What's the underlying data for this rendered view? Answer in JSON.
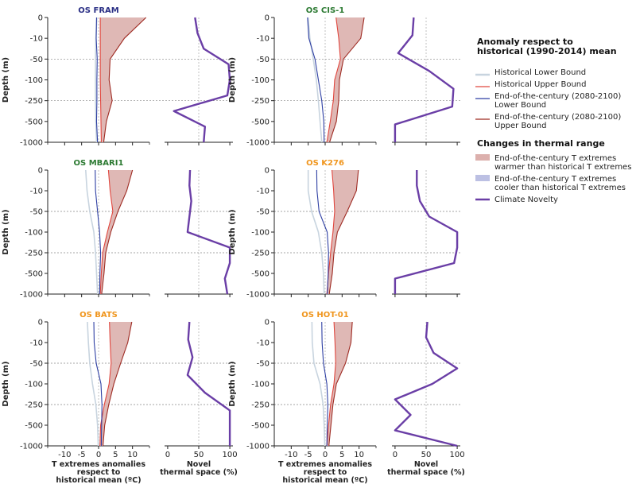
{
  "chart_data": {
    "type": "line",
    "depth_ticks": [
      0,
      -10,
      -50,
      -100,
      -250,
      -500,
      -1000
    ],
    "depth_tick_labels": [
      "0",
      "-10",
      "-50",
      "-100",
      "-250",
      "-500",
      "-1000"
    ],
    "depth_refs": [
      -50,
      -200,
      -1000
    ],
    "y_label": "Depth (m)",
    "anom_ticks": [
      -10,
      -5,
      0,
      5,
      10
    ],
    "anom_tick_labels": [
      "-10",
      "-5",
      "0",
      "5",
      "10"
    ],
    "anom_xlabel": [
      "T extremes anomalies",
      "respect to",
      "historical mean (ºC)"
    ],
    "novel_ticks": [
      0,
      50,
      100
    ],
    "novel_tick_labels": [
      "0",
      "50",
      "100"
    ],
    "novel_xlabel": [
      "Novel",
      "thermal space (%)"
    ],
    "colors": {
      "hist_lower": "#c8d4df",
      "hist_upper": "#e0473f",
      "eoc_lower": "#2e3fa3",
      "eoc_upper": "#9e2a22",
      "warm_fill": "#dcb0ad",
      "cool_fill": "#bcc0e3",
      "novelty": "#6a3ea6",
      "title_blue": "#2a2f85",
      "title_green": "#2c7a32",
      "title_orange": "#f0961e"
    },
    "legend": {
      "title1": [
        "Anomaly respect to",
        "historical (1990-2014) mean"
      ],
      "items1": [
        {
          "key": "hist_lower",
          "lines": [
            "Historical Lower Bound"
          ]
        },
        {
          "key": "hist_upper",
          "lines": [
            "Historical Upper Bound"
          ]
        },
        {
          "key": "eoc_lower",
          "lines": [
            "End-of-the-century (2080-2100)",
            "Lower Bound"
          ]
        },
        {
          "key": "eoc_upper",
          "lines": [
            "End-of-the-century (2080-2100)",
            "Upper Bound"
          ]
        }
      ],
      "title2": "Changes in thermal range",
      "items2": [
        {
          "key": "warm_fill",
          "lines": [
            "End-of-the-century T extremes",
            "warmer than historical T extremes"
          ]
        },
        {
          "key": "cool_fill",
          "lines": [
            "End-of-the-century T extremes",
            "cooler than historical T extremes"
          ]
        },
        {
          "key": "novelty",
          "lines": [
            "Climate Novelty"
          ]
        }
      ]
    },
    "stations": [
      {
        "name": "OS FRAM",
        "title_color": "title_blue",
        "depth": [
          0,
          -10,
          -50,
          -100,
          -250,
          -500,
          -1000
        ],
        "hist_lower": [
          -0.5,
          -0.8,
          -0.9,
          -0.9,
          -0.9,
          -0.8,
          -0.6
        ],
        "hist_upper": [
          0.5,
          0.5,
          0.5,
          0.5,
          0.6,
          0.7,
          0.8
        ],
        "eoc_lower": [
          -0.6,
          -0.7,
          -0.4,
          -0.5,
          -0.5,
          -0.6,
          -0.3
        ],
        "eoc_upper": [
          14.0,
          7.6,
          3.4,
          3.1,
          4.0,
          2.3,
          1.5
        ],
        "novelty": [
          44,
          48,
          58,
          98,
          100,
          96,
          10,
          60,
          58
        ]
      },
      {
        "name": "OS CIS-1",
        "title_color": "title_green",
        "depth": [
          0,
          -10,
          -50,
          -100,
          -250,
          -500,
          -1000
        ],
        "hist_lower": [
          -5.0,
          -4.5,
          -3.5,
          -2.6,
          -2.0,
          -1.5,
          -1.0
        ],
        "hist_upper": [
          3.2,
          4.0,
          4.5,
          2.8,
          2.4,
          1.5,
          0.5
        ],
        "eoc_lower": [
          -5.2,
          -4.8,
          -3.0,
          -2.0,
          -1.0,
          -0.4,
          -0.3
        ],
        "eoc_upper": [
          11.5,
          10.5,
          5.4,
          4.2,
          4.0,
          3.3,
          1.3
        ],
        "novelty": [
          30,
          28,
          5,
          55,
          94,
          92,
          0,
          0
        ]
      },
      {
        "name": "OS MBARI1",
        "title_color": "title_green",
        "depth": [
          0,
          -10,
          -50,
          -100,
          -250,
          -500,
          -1000
        ],
        "hist_lower": [
          -3.8,
          -3.4,
          -2.6,
          -1.4,
          -0.9,
          -0.6,
          -0.3
        ],
        "hist_upper": [
          2.9,
          3.4,
          4.2,
          2.6,
          1.2,
          0.8,
          0.5
        ],
        "eoc_lower": [
          -1.0,
          -0.9,
          -0.3,
          0.3,
          0.6,
          0.4,
          0.3
        ],
        "eoc_upper": [
          10.0,
          8.3,
          5.7,
          3.6,
          2.1,
          1.6,
          0.9
        ],
        "novelty": [
          36,
          35,
          38,
          35,
          32,
          100,
          100,
          92,
          96
        ]
      },
      {
        "name": "OS K276",
        "title_color": "title_orange",
        "depth": [
          0,
          -10,
          -50,
          -100,
          -250,
          -500,
          -1000
        ],
        "hist_lower": [
          -5.0,
          -5.0,
          -4.0,
          -2.0,
          -1.0,
          -0.5,
          -0.3
        ],
        "hist_upper": [
          2.0,
          2.5,
          2.8,
          2.3,
          1.6,
          1.0,
          0.5
        ],
        "eoc_lower": [
          -2.5,
          -2.4,
          -1.8,
          0.6,
          1.0,
          0.9,
          0.6
        ],
        "eoc_upper": [
          9.8,
          9.2,
          6.5,
          3.6,
          2.6,
          2.1,
          1.2
        ],
        "novelty": [
          35,
          35,
          40,
          55,
          100,
          100,
          95,
          0,
          0
        ]
      },
      {
        "name": "OS BATS",
        "title_color": "title_orange",
        "depth": [
          0,
          -10,
          -50,
          -100,
          -250,
          -500,
          -1000
        ],
        "hist_lower": [
          -3.3,
          -3.0,
          -2.6,
          -1.8,
          -0.8,
          -0.3,
          -0.1
        ],
        "hist_upper": [
          3.2,
          3.4,
          3.7,
          3.1,
          1.7,
          0.6,
          0.4
        ],
        "eoc_lower": [
          -1.4,
          -1.3,
          -0.7,
          0.7,
          1.0,
          0.9,
          0.8
        ],
        "eoc_upper": [
          9.8,
          8.6,
          6.5,
          4.5,
          3.0,
          1.8,
          1.3
        ],
        "novelty": [
          35,
          33,
          40,
          32,
          60,
          100,
          100,
          100
        ]
      },
      {
        "name": "OS HOT-01",
        "title_color": "title_orange",
        "depth": [
          0,
          -10,
          -50,
          -100,
          -250,
          -500,
          -1000
        ],
        "hist_lower": [
          -3.9,
          -3.8,
          -3.3,
          -1.5,
          -0.6,
          -0.3,
          -0.1
        ],
        "hist_upper": [
          2.6,
          2.9,
          3.1,
          2.6,
          1.6,
          1.0,
          0.5
        ],
        "eoc_lower": [
          -1.0,
          -0.9,
          -0.5,
          0.5,
          0.8,
          0.6,
          0.5
        ],
        "eoc_upper": [
          8.0,
          7.6,
          6.0,
          3.3,
          2.3,
          1.7,
          1.1
        ],
        "novelty": [
          52,
          50,
          62,
          100,
          60,
          0,
          25,
          0,
          100
        ]
      }
    ]
  }
}
